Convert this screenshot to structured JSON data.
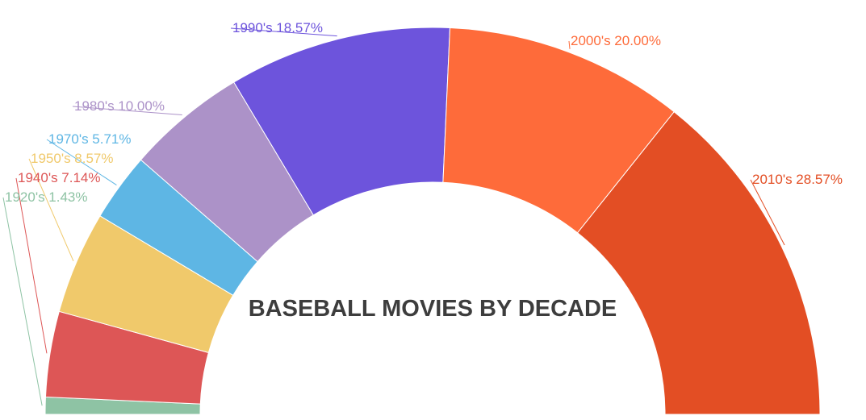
{
  "chart_data": {
    "type": "pie",
    "variant": "semi-donut",
    "title": "BASEBALL MOVIES BY DECADE",
    "slices": [
      {
        "label": "1920's",
        "value": 1.43,
        "display": "1920's 1.43%",
        "color": "#8ec3a4"
      },
      {
        "label": "1940's",
        "value": 7.14,
        "display": "1940's 7.14%",
        "color": "#dd5656"
      },
      {
        "label": "1950's",
        "value": 8.57,
        "display": "1950's 8.57%",
        "color": "#f0c96b"
      },
      {
        "label": "1970's",
        "value": 5.71,
        "display": "1970's 5.71%",
        "color": "#5eb6e4"
      },
      {
        "label": "1980's",
        "value": 10.0,
        "display": "1980's 10.00%",
        "color": "#ac92c8"
      },
      {
        "label": "1990's",
        "value": 18.57,
        "display": "1990's 18.57%",
        "color": "#6d54dc"
      },
      {
        "label": "2000's",
        "value": 20.0,
        "display": "2000's 20.00%",
        "color": "#fe6b3a"
      },
      {
        "label": "2010's",
        "value": 28.57,
        "display": "2010's 28.57%",
        "color": "#e34e24"
      }
    ],
    "legend": "none",
    "data_labels": "outside with leader lines"
  }
}
